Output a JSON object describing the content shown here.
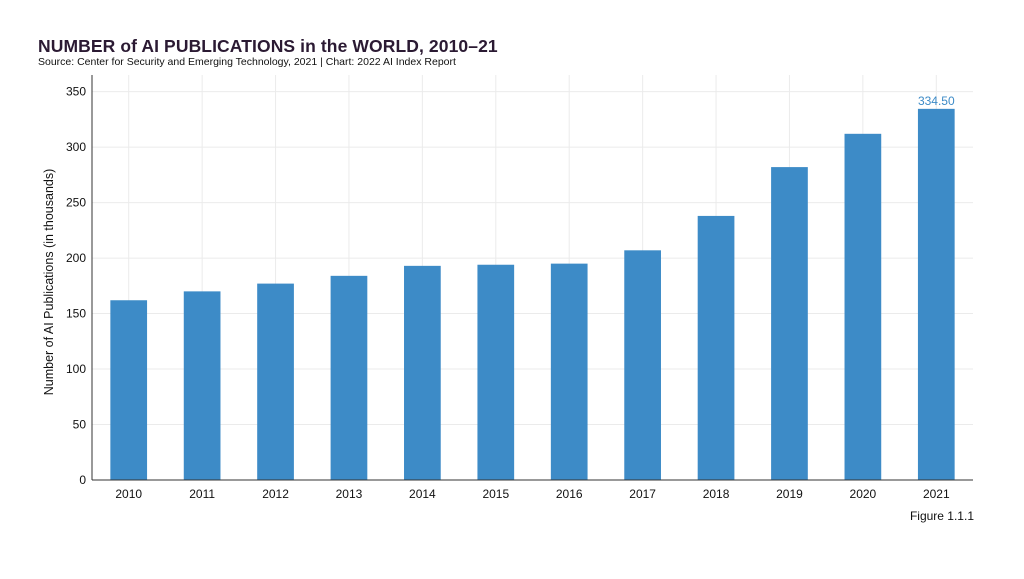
{
  "header": {
    "title": "NUMBER of AI PUBLICATIONS in the WORLD, 2010–21",
    "source": "Source: Center for Security and Emerging Technology, 2021 | Chart: 2022 AI Index Report"
  },
  "footer": {
    "figure_label": "Figure 1.1.1"
  },
  "colors": {
    "bar": "#3d8bc7",
    "label": "#3d8bc7",
    "grid": "#ebebeb",
    "axis": "#333333"
  },
  "chart_data": {
    "type": "bar",
    "categories": [
      "2010",
      "2011",
      "2012",
      "2013",
      "2014",
      "2015",
      "2016",
      "2017",
      "2018",
      "2019",
      "2020",
      "2021"
    ],
    "values": [
      162,
      170,
      177,
      184,
      193,
      194,
      195,
      207,
      238,
      282,
      312,
      334.5
    ],
    "data_labels": [
      {
        "category": "2021",
        "text": "334.50"
      }
    ],
    "ylabel": "Number of AI Publications (in thousands)",
    "xlabel": "",
    "yticks": [
      0,
      50,
      100,
      150,
      200,
      250,
      300,
      350
    ],
    "ylim": [
      0,
      365
    ],
    "grid": true,
    "legend": "none"
  }
}
